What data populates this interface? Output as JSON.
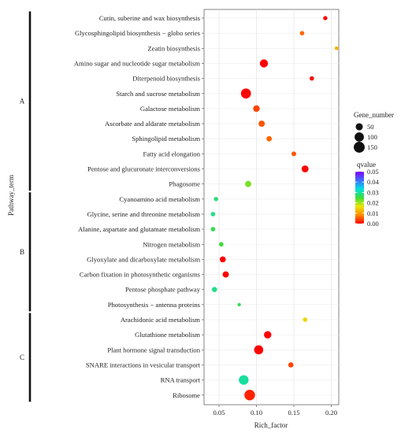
{
  "chart_data": {
    "type": "scatter",
    "xlabel": "Rich_factor",
    "ylabel": "Pathway_term",
    "xlim": [
      0.03,
      0.21
    ],
    "xticks": [
      0.05,
      0.1,
      0.15,
      0.2
    ],
    "xtick_labels": [
      "0.05",
      "0.10",
      "0.15",
      "0.20"
    ],
    "grid": true,
    "groups": [
      {
        "label": "A",
        "first": 0,
        "last": 11
      },
      {
        "label": "B",
        "first": 12,
        "last": 19
      },
      {
        "label": "C",
        "first": 20,
        "last": 25
      }
    ],
    "points": [
      {
        "term": "Cutin, suberine and wax biosynthesis",
        "rich_factor": 0.192,
        "gene_number": 10,
        "qvalue": 0.0
      },
      {
        "term": "Glycosphingolipid biosynthesis − globo series",
        "rich_factor": 0.161,
        "gene_number": 12,
        "qvalue": 0.006
      },
      {
        "term": "Zeatin biosynthesis",
        "rich_factor": 0.207,
        "gene_number": 6,
        "qvalue": 0.012
      },
      {
        "term": "Amino sugar and nucleotide sugar metabolism",
        "rich_factor": 0.11,
        "gene_number": 70,
        "qvalue": 0.0
      },
      {
        "term": "Diterpenoid biosynthesis",
        "rich_factor": 0.174,
        "gene_number": 12,
        "qvalue": 0.001
      },
      {
        "term": "Starch and sucrose metabolism",
        "rich_factor": 0.086,
        "gene_number": 120,
        "qvalue": 0.0
      },
      {
        "term": "Galactose metabolism",
        "rich_factor": 0.1,
        "gene_number": 40,
        "qvalue": 0.004
      },
      {
        "term": "Ascorbate and aldarate metabolism",
        "rich_factor": 0.107,
        "gene_number": 35,
        "qvalue": 0.005
      },
      {
        "term": "Sphingolipid metabolism",
        "rich_factor": 0.117,
        "gene_number": 22,
        "qvalue": 0.006
      },
      {
        "term": "Fatty acid elongation",
        "rich_factor": 0.15,
        "gene_number": 14,
        "qvalue": 0.005
      },
      {
        "term": "Pentose and glucuronate interconversions",
        "rich_factor": 0.165,
        "gene_number": 45,
        "qvalue": 0.0
      },
      {
        "term": "Phagosome",
        "rich_factor": 0.089,
        "gene_number": 35,
        "qvalue": 0.022
      },
      {
        "term": "Cyanoamino acid metabolism",
        "rich_factor": 0.046,
        "gene_number": 10,
        "qvalue": 0.028
      },
      {
        "term": "Glycine, serine and threonine metabolism",
        "rich_factor": 0.042,
        "gene_number": 12,
        "qvalue": 0.029
      },
      {
        "term": "Alanine, aspartate and glutamate metabolism",
        "rich_factor": 0.042,
        "gene_number": 12,
        "qvalue": 0.026
      },
      {
        "term": "Nitrogen metabolism",
        "rich_factor": 0.053,
        "gene_number": 12,
        "qvalue": 0.025
      },
      {
        "term": "Glyoxylate and dicarboxylate metabolism",
        "rich_factor": 0.055,
        "gene_number": 30,
        "qvalue": 0.0
      },
      {
        "term": "Carbon fixation in photosynthetic organisms",
        "rich_factor": 0.059,
        "gene_number": 35,
        "qvalue": 0.0
      },
      {
        "term": "Pentose phosphate pathway",
        "rich_factor": 0.044,
        "gene_number": 20,
        "qvalue": 0.029
      },
      {
        "term": "Photosynthesis − antenna proteins",
        "rich_factor": 0.077,
        "gene_number": 4,
        "qvalue": 0.026
      },
      {
        "term": "Arachidonic acid metabolism",
        "rich_factor": 0.165,
        "gene_number": 12,
        "qvalue": 0.015
      },
      {
        "term": "Glutathione metabolism",
        "rich_factor": 0.115,
        "gene_number": 55,
        "qvalue": 0.0
      },
      {
        "term": "Plant hormone signal transduction",
        "rich_factor": 0.103,
        "gene_number": 95,
        "qvalue": 0.0
      },
      {
        "term": "SNARE interactions in vesicular transport",
        "rich_factor": 0.146,
        "gene_number": 20,
        "qvalue": 0.004
      },
      {
        "term": "RNA transport",
        "rich_factor": 0.083,
        "gene_number": 110,
        "qvalue": 0.03
      },
      {
        "term": "Ribosome",
        "rich_factor": 0.091,
        "gene_number": 140,
        "qvalue": 0.002
      }
    ],
    "legend_size": {
      "title": "Gene_number",
      "values": [
        50,
        100,
        150
      ],
      "labels": [
        "50",
        "100",
        "150"
      ]
    },
    "legend_color": {
      "title": "qvalue",
      "range": [
        0.0,
        0.05
      ],
      "ticks": [
        0.05,
        0.04,
        0.03,
        0.02,
        0.01,
        0.0
      ],
      "tick_labels": [
        "0.05",
        "0.04",
        "0.03",
        "0.02",
        "0.01",
        "0.00"
      ],
      "stops": [
        "#ff0000",
        "#ff8c00",
        "#e8e800",
        "#3cdc3c",
        "#00e0e0",
        "#3e6eff",
        "#8000ff"
      ]
    }
  }
}
